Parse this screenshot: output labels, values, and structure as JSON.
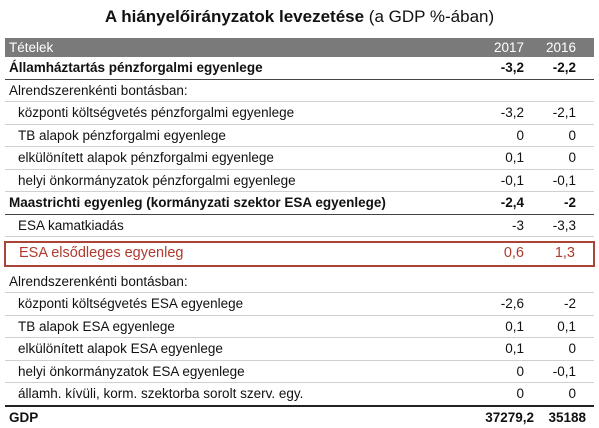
{
  "title": {
    "bold": "A hiányelőirányzatok levezetése",
    "normal": " (a GDP %-ában)"
  },
  "header": {
    "label": "Tételek",
    "y1": "2017",
    "y2": "2016"
  },
  "rows": [
    {
      "label": "Államháztartás pénzforgalmi egyenlege",
      "v1": "-3,2",
      "v2": "-2,2"
    },
    {
      "label": "Alrendszerenkénti bontásban:",
      "v1": "",
      "v2": ""
    },
    {
      "label": "központi költségvetés pénzforgalmi egyenlege",
      "v1": "-3,2",
      "v2": "-2,1"
    },
    {
      "label": "TB alapok pénzforgalmi egyenlege",
      "v1": "0",
      "v2": "0"
    },
    {
      "label": "elkülönített alapok pénzforgalmi egyenlege",
      "v1": "0,1",
      "v2": "0"
    },
    {
      "label": "helyi önkormányzatok pénzforgalmi egyenlege",
      "v1": "-0,1",
      "v2": "-0,1"
    },
    {
      "label": "Maastrichti egyenleg (kormányzati szektor ESA egyenlege)",
      "v1": "-2,4",
      "v2": "-2"
    },
    {
      "label": "ESA kamatkiadás",
      "v1": "-3",
      "v2": "-3,3"
    },
    {
      "label": "ESA elsődleges egyenleg",
      "v1": "0,6",
      "v2": "1,3"
    },
    {
      "label": "Alrendszerenkénti bontásban:",
      "v1": "",
      "v2": ""
    },
    {
      "label": "központi költségvetés ESA egyenlege",
      "v1": "-2,6",
      "v2": "-2"
    },
    {
      "label": "TB alapok ESA egyenlege",
      "v1": "0,1",
      "v2": "0,1"
    },
    {
      "label": "elkülönített alapok ESA egyenlege",
      "v1": "0,1",
      "v2": "0"
    },
    {
      "label": "helyi önkormányzatok ESA egyenlege",
      "v1": "0",
      "v2": "-0,1"
    },
    {
      "label": "államh. kívüli, korm. szektorba sorolt szerv. egy.",
      "v1": "0",
      "v2": "0"
    },
    {
      "label": "GDP",
      "v1": "37279,2",
      "v2": "35188"
    }
  ],
  "colors": {
    "header_bg": "#7a7a7a",
    "highlight": "#b03a2e"
  }
}
